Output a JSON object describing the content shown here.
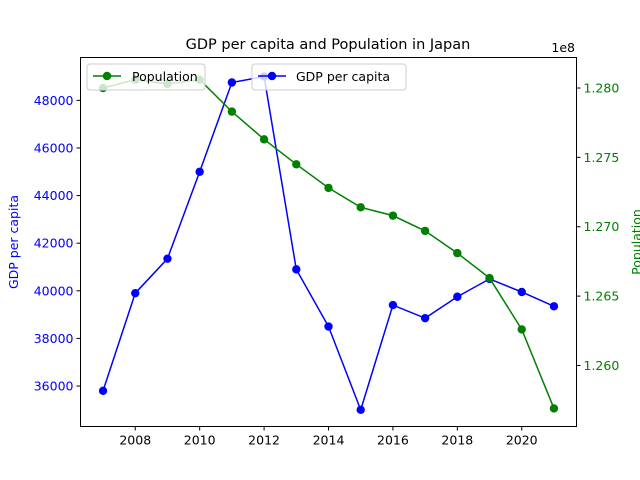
{
  "chart_data": {
    "type": "line",
    "title": "GDP per capita and Population in Japan",
    "x": [
      2007,
      2008,
      2009,
      2010,
      2011,
      2012,
      2013,
      2014,
      2015,
      2016,
      2017,
      2018,
      2019,
      2020,
      2021
    ],
    "xlim": [
      2006.3,
      2021.7
    ],
    "x_ticks": [
      2008,
      2010,
      2012,
      2014,
      2016,
      2018,
      2020
    ],
    "legend_placement": "top",
    "grid": false,
    "left_axis": {
      "label": "GDP per capita",
      "color": "#0000ff",
      "ylim": [
        34300,
        49800
      ],
      "ticks": [
        36000,
        38000,
        40000,
        42000,
        44000,
        46000,
        48000
      ]
    },
    "right_axis": {
      "label": "Population",
      "color": "#008000",
      "offset_label": "1e8",
      "ylim": [
        1.2556,
        1.2822
      ],
      "ticks": [
        1.26,
        1.265,
        1.27,
        1.275,
        1.28
      ]
    },
    "series": [
      {
        "name": "GDP per capita",
        "axis": "left",
        "color": "#0000ff",
        "values": [
          35800,
          39900,
          41350,
          45000,
          48750,
          49000,
          40900,
          38500,
          35000,
          39400,
          38850,
          39750,
          40500,
          39950,
          39350
        ]
      },
      {
        "name": "Population",
        "axis": "right",
        "color": "#008000",
        "values": [
          1.28,
          1.2806,
          1.2803,
          1.2806,
          1.2783,
          1.2763,
          1.2745,
          1.2728,
          1.2714,
          1.2708,
          1.2697,
          1.2681,
          1.2663,
          1.2626,
          1.2569
        ]
      }
    ]
  }
}
